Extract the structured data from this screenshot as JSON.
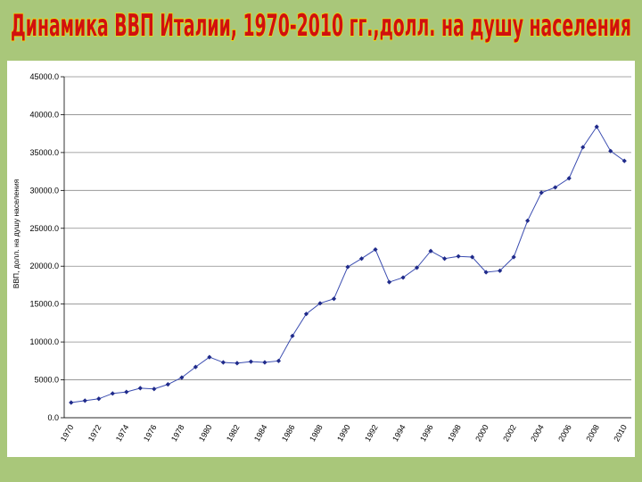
{
  "chart_data": {
    "type": "line",
    "title": "Динамика ВВП Италии, 1970-2010 гг.,долл. на душу населения",
    "y_label": "ВВП, долл. на душу населения",
    "categories": [
      "1970",
      null,
      "1972",
      null,
      "1974",
      null,
      "1976",
      null,
      "1978",
      null,
      "1980",
      null,
      "1982",
      null,
      "1984",
      null,
      "1986",
      null,
      "1988",
      null,
      "1990",
      null,
      "1992",
      null,
      "1994",
      null,
      "1996",
      null,
      "1998",
      null,
      "2000",
      null,
      "2002",
      null,
      "2004",
      null,
      "2006",
      null,
      "2008",
      null,
      "2010"
    ],
    "values": [
      2000,
      2250,
      2500,
      3200,
      3400,
      3900,
      3800,
      4400,
      5300,
      6700,
      8000,
      7300,
      7200,
      7400,
      7300,
      7500,
      10800,
      13700,
      15100,
      15700,
      19900,
      21000,
      22200,
      17900,
      18500,
      19800,
      22000,
      21000,
      21300,
      21200,
      19200,
      19400,
      21200,
      26000,
      29700,
      30400,
      31600,
      35700,
      38400,
      35200,
      33900
    ],
    "color": "#1f2a8a",
    "ylim": [
      0,
      45000
    ],
    "yticks": [
      {
        "value": 0,
        "label": "0.0"
      },
      {
        "value": 5000,
        "label": "5000.0"
      },
      {
        "value": 10000,
        "label": "10000.0"
      },
      {
        "value": 15000,
        "label": "15000.0"
      },
      {
        "value": 20000,
        "label": "20000.0"
      },
      {
        "value": 25000,
        "label": "25000.0"
      },
      {
        "value": 30000,
        "label": "30000.0"
      },
      {
        "value": 35000,
        "label": "35000.0"
      },
      {
        "value": 40000,
        "label": "40000.0"
      },
      {
        "value": 45000,
        "label": "45000.0"
      }
    ],
    "grid": true
  }
}
